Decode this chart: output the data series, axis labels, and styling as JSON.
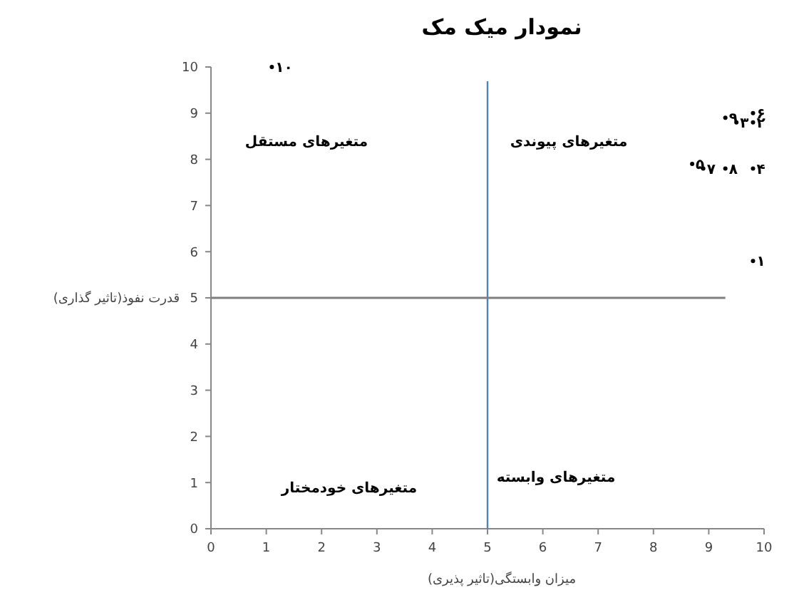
{
  "chart_data": {
    "type": "scatter",
    "title": "نمودار میک مک",
    "xlabel": "میزان وابستگی(تاثیر پذیری)",
    "ylabel": "قدرت نفوذ(تاثیر گذاری)",
    "series": [
      {
        "name": "۱۰",
        "color": "#000000",
        "x": [
          1.1
        ],
        "values": [
          10
        ]
      },
      {
        "name": "۹",
        "color": "#000000",
        "x": [
          9.3
        ],
        "values": [
          8.9
        ]
      },
      {
        "name": "۳",
        "color": "#000000",
        "x": [
          9.5
        ],
        "values": [
          8.8
        ]
      },
      {
        "name": "۶",
        "color": "#000000",
        "x": [
          9.8
        ],
        "values": [
          9.0
        ]
      },
      {
        "name": "۲",
        "color": "#000000",
        "x": [
          9.8
        ],
        "values": [
          8.8
        ]
      },
      {
        "name": "۵",
        "color": "#000000",
        "x": [
          8.7
        ],
        "values": [
          7.9
        ]
      },
      {
        "name": "۷",
        "color": "#000000",
        "x": [
          8.9
        ],
        "values": [
          7.8
        ]
      },
      {
        "name": "۸",
        "color": "#000000",
        "x": [
          9.3
        ],
        "values": [
          7.8
        ]
      },
      {
        "name": "۴",
        "color": "#000000",
        "x": [
          9.8
        ],
        "values": [
          7.8
        ]
      },
      {
        "name": "۱",
        "color": "#000000",
        "x": [
          9.8
        ],
        "values": [
          5.8
        ]
      }
    ],
    "marker": "circle",
    "xlim": [
      0,
      10
    ],
    "ylim": [
      0,
      10
    ],
    "xticks": [
      0,
      1,
      2,
      3,
      4,
      5,
      6,
      7,
      8,
      9,
      10
    ],
    "yticks": [
      0,
      1,
      2,
      3,
      4,
      5,
      6,
      7,
      8,
      9,
      10
    ],
    "ref_lines": [
      {
        "axis": "x",
        "value": 5,
        "color": "#4f81bd"
      },
      {
        "axis": "y",
        "value": 5,
        "color": "#7f7f7f"
      }
    ],
    "annotations": [
      "متغیرهای مستقل",
      "متغیرهای پیوندی",
      "متغیرهای خودمختار",
      "متغیرهای وابسته"
    ]
  }
}
